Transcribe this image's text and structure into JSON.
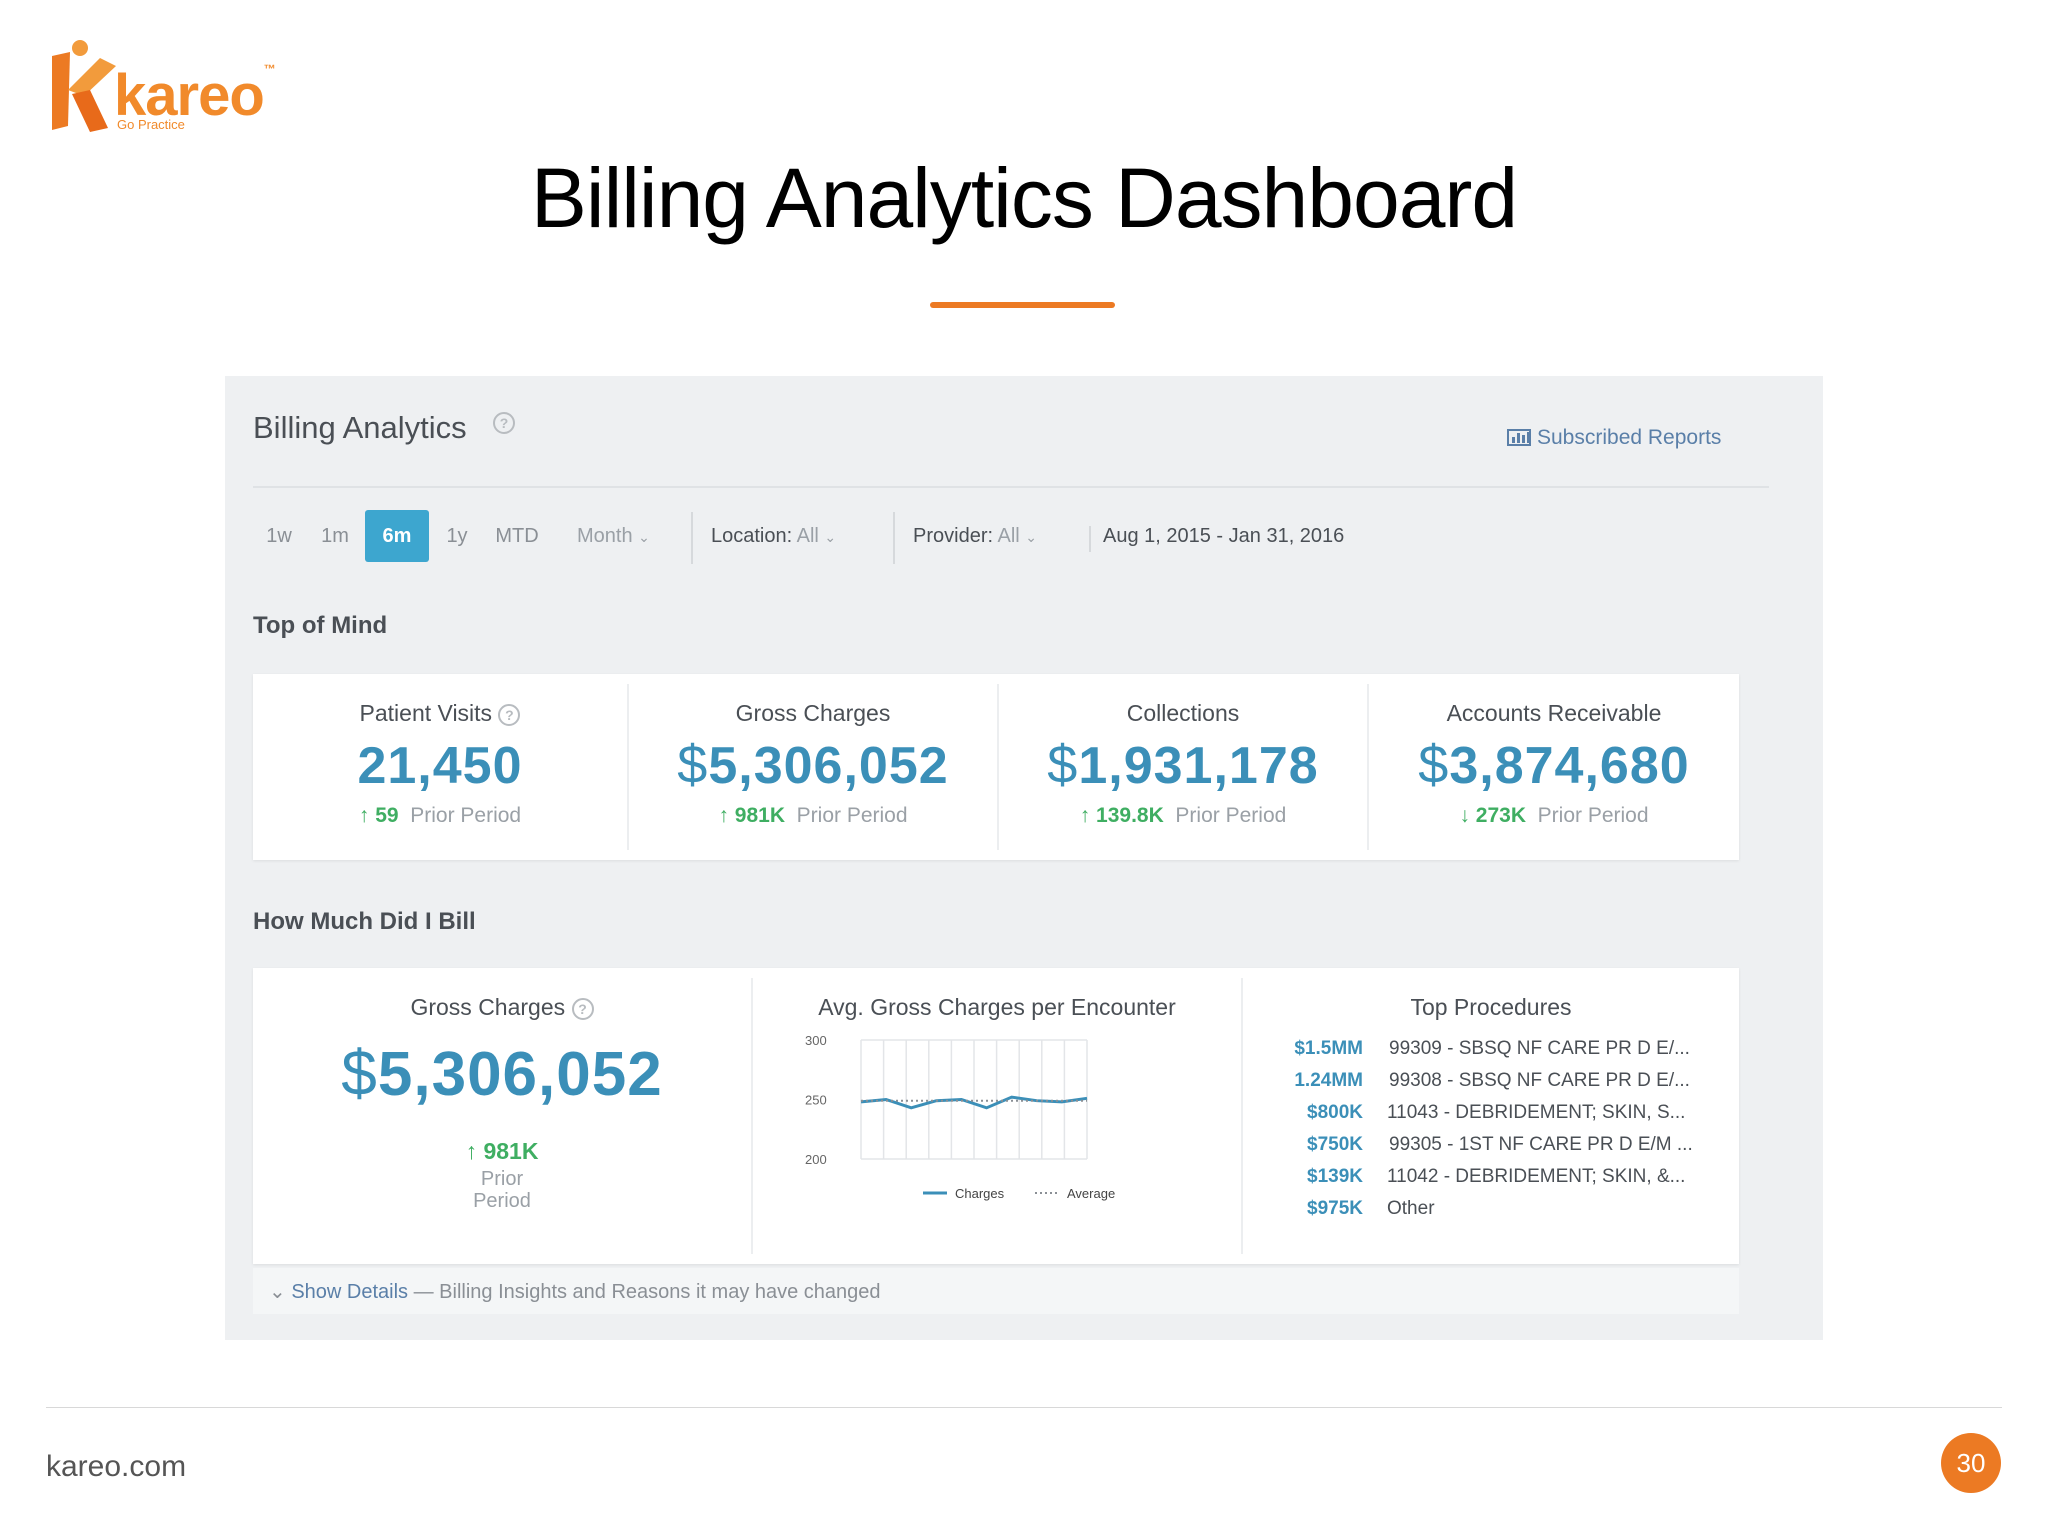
{
  "brand": {
    "logo_text": "kareo",
    "tagline": "Go Practice",
    "colors": {
      "primary_orange": "#ec7a23",
      "accent_blue": "#3b8fb8",
      "active_blue": "#3da6cf",
      "positive_green": "#3fae62"
    }
  },
  "slide": {
    "title": "Billing Analytics Dashboard",
    "footer_url": "kareo.com",
    "page_number": "30"
  },
  "dashboard": {
    "title": "Billing Analytics",
    "subscribed_reports": "Subscribed Reports",
    "range_buttons": [
      {
        "label": "1w",
        "active": false
      },
      {
        "label": "1m",
        "active": false
      },
      {
        "label": "6m",
        "active": true
      },
      {
        "label": "1y",
        "active": false
      },
      {
        "label": "MTD",
        "active": false
      }
    ],
    "period_select": "Month",
    "location": {
      "label": "Location:",
      "value": "All"
    },
    "provider": {
      "label": "Provider:",
      "value": "All"
    },
    "date_range": "Aug 1, 2015 - Jan 31, 2016",
    "top_of_mind": {
      "heading": "Top of Mind",
      "cards": [
        {
          "label": "Patient Visits",
          "currency": "",
          "value": "21,450",
          "direction": "up",
          "change": "59",
          "prior": "Prior Period",
          "help": true
        },
        {
          "label": "Gross Charges",
          "currency": "$",
          "value": "5,306,052",
          "direction": "up",
          "change": "981K",
          "prior": "Prior Period",
          "help": false
        },
        {
          "label": "Collections",
          "currency": "$",
          "value": "1,931,178",
          "direction": "up",
          "change": "139.8K",
          "prior": "Prior Period",
          "help": false
        },
        {
          "label": "Accounts Receivable",
          "currency": "$",
          "value": "3,874,680",
          "direction": "down",
          "change": "273K",
          "prior": "Prior Period",
          "help": false
        }
      ]
    },
    "how_much": {
      "heading": "How Much Did I Bill",
      "gross": {
        "label": "Gross Charges",
        "currency": "$",
        "value": "5,306,052",
        "change": "981K",
        "prior_line1": "Prior",
        "prior_line2": "Period"
      },
      "chart_title": "Avg. Gross Charges per Encounter",
      "top_procedures_title": "Top Procedures",
      "procedures": [
        {
          "amount": "$1.5MM",
          "desc": "99309 - SBSQ NF CARE PR D E/..."
        },
        {
          "amount": "1.24MM",
          "desc": "99308 - SBSQ NF CARE PR D E/..."
        },
        {
          "amount": "$800K",
          "desc": "11043 - DEBRIDEMENT; SKIN, S..."
        },
        {
          "amount": "$750K",
          "desc": "99305 - 1ST NF CARE PR D E/M ..."
        },
        {
          "amount": "$139K",
          "desc": "11042 - DEBRIDEMENT; SKIN, &..."
        },
        {
          "amount": "$975K",
          "desc": "Other"
        }
      ]
    },
    "details": {
      "link": "Show Details",
      "text": " — Billing Insights and Reasons it may have changed"
    }
  },
  "chart_data": {
    "type": "line",
    "title": "Avg. Gross Charges per Encounter",
    "ylim": [
      200,
      300
    ],
    "yticks": [
      "300",
      "250",
      "200"
    ],
    "x": [
      1,
      2,
      3,
      4,
      5,
      6,
      7,
      8,
      9,
      10
    ],
    "series": [
      {
        "name": "Charges",
        "style": "solid",
        "color": "#3b8fb8",
        "values": [
          248,
          250,
          243,
          249,
          250,
          243,
          252,
          249,
          248,
          251
        ]
      },
      {
        "name": "Average",
        "style": "dotted",
        "color": "#8a8f95",
        "values": [
          249,
          249,
          249,
          249,
          249,
          249,
          249,
          249,
          249,
          249
        ]
      }
    ],
    "grid": true,
    "legend": "bottom"
  }
}
